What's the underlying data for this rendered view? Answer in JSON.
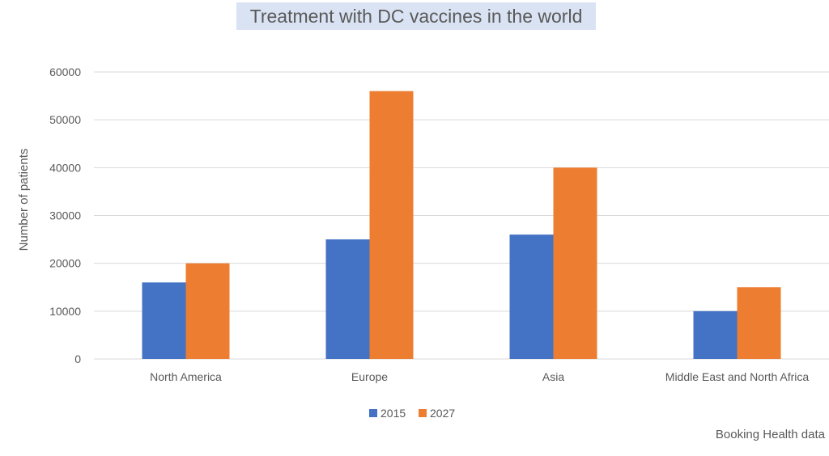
{
  "chart_data": {
    "type": "bar",
    "title": "Treatment with DC vaccines in the world",
    "xlabel": "",
    "ylabel": "Number of patients",
    "categories": [
      "North America",
      "Europe",
      "Asia",
      "Middle East and North Africa"
    ],
    "series": [
      {
        "name": "2015",
        "color": "#4472c4",
        "values": [
          16000,
          25000,
          26000,
          10000
        ]
      },
      {
        "name": "2027",
        "color": "#ed7d31",
        "values": [
          20000,
          56000,
          40000,
          15000
        ]
      }
    ],
    "ylim": [
      0,
      60000
    ],
    "yticks": [
      "0",
      "10000",
      "20000",
      "30000",
      "40000",
      "50000",
      "60000"
    ],
    "grid": true,
    "legend_position": "bottom",
    "source_note": "Booking Health data",
    "colors": {
      "title_background": "#dae3f3",
      "gridline": "#d9d9d9",
      "text": "#595959"
    }
  }
}
